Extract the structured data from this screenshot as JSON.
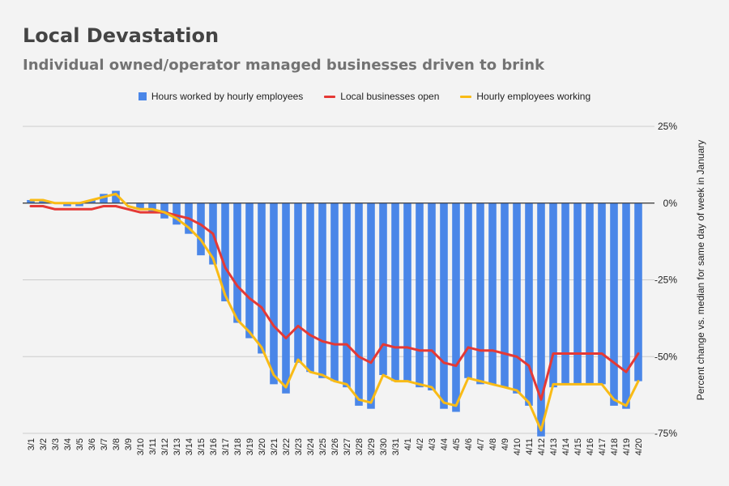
{
  "chart_data": {
    "type": "bar",
    "title": "Local Devastation",
    "subtitle": "Individual owned/operator managed businesses driven to brink",
    "ylabel": "Percent change vs. median for same day of week in January",
    "xlabel": "",
    "ylim": [
      -75,
      25
    ],
    "yticks": [
      25,
      0,
      -25,
      -50,
      -75
    ],
    "ytick_labels": [
      "25%",
      "0%",
      "-25%",
      "-50%",
      "-75%"
    ],
    "y_axis_side": "right",
    "grid": true,
    "legend_position": "top",
    "categories": [
      "3/1",
      "3/2",
      "3/3",
      "3/4",
      "3/5",
      "3/6",
      "3/7",
      "3/8",
      "3/9",
      "3/10",
      "3/11",
      "3/12",
      "3/13",
      "3/14",
      "3/15",
      "3/16",
      "3/17",
      "3/18",
      "3/19",
      "3/20",
      "3/21",
      "3/22",
      "3/23",
      "3/24",
      "3/25",
      "3/26",
      "3/27",
      "3/28",
      "3/29",
      "3/30",
      "3/31",
      "4/1",
      "4/2",
      "4/3",
      "4/4",
      "4/5",
      "4/6",
      "4/7",
      "4/8",
      "4/9",
      "4/10",
      "4/11",
      "4/12",
      "4/13",
      "4/14",
      "4/15",
      "4/16",
      "4/17",
      "4/18",
      "4/19",
      "4/20"
    ],
    "series": [
      {
        "name": "Hours worked by hourly employees",
        "type": "bar",
        "color": "#4a86e8",
        "values": [
          1,
          1,
          0,
          -1,
          -1,
          1,
          3,
          4,
          0,
          -2,
          -3,
          -5,
          -7,
          -10,
          -17,
          -20,
          -32,
          -39,
          -44,
          -49,
          -59,
          -62,
          -52,
          -55,
          -57,
          -58,
          -60,
          -66,
          -67,
          -56,
          -58,
          -58,
          -60,
          -61,
          -67,
          -68,
          -57,
          -59,
          -59,
          -60,
          -62,
          -66,
          -76,
          -60,
          -59,
          -59,
          -59,
          -59,
          -66,
          -67,
          -58
        ]
      },
      {
        "name": "Local businesses open",
        "type": "line",
        "color": "#e53935",
        "values": [
          -1,
          -1,
          -2,
          -2,
          -2,
          -2,
          -1,
          -1,
          -2,
          -3,
          -3,
          -3,
          -4,
          -5,
          -7,
          -10,
          -21,
          -27,
          -31,
          -34,
          -40,
          -44,
          -40,
          -43,
          -45,
          -46,
          -46,
          -50,
          -52,
          -46,
          -47,
          -47,
          -48,
          -48,
          -52,
          -53,
          -47,
          -48,
          -48,
          -49,
          -50,
          -53,
          -64,
          -49,
          -49,
          -49,
          -49,
          -49,
          -52,
          -55,
          -49
        ]
      },
      {
        "name": "Hourly employees working",
        "type": "line",
        "color": "#f9bb16",
        "values": [
          1,
          1,
          0,
          0,
          0,
          1,
          2,
          3,
          -1,
          -2,
          -2,
          -3,
          -5,
          -8,
          -12,
          -18,
          -30,
          -38,
          -42,
          -47,
          -56,
          -60,
          -51,
          -55,
          -56,
          -58,
          -59,
          -64,
          -65,
          -56,
          -58,
          -58,
          -59,
          -60,
          -65,
          -66,
          -57,
          -58,
          -59,
          -60,
          -61,
          -65,
          -74,
          -59,
          -59,
          -59,
          -59,
          -59,
          -64,
          -66,
          -58
        ]
      }
    ]
  }
}
